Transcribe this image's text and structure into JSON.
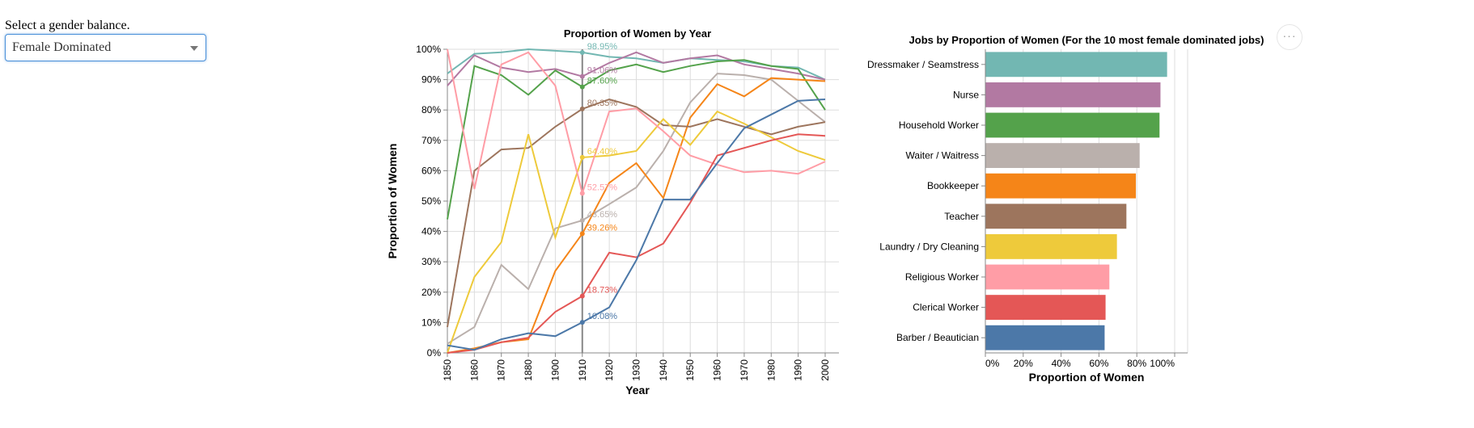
{
  "control": {
    "label": "Select a gender balance.",
    "selected": "Female Dominated"
  },
  "actions_menu": {
    "glyph": "···"
  },
  "chart_data": [
    {
      "type": "line",
      "title": "Proportion of Women by Year",
      "xlabel": "Year",
      "ylabel": "Proportion of Women",
      "x": [
        1850,
        1860,
        1870,
        1880,
        1900,
        1910,
        1920,
        1930,
        1940,
        1950,
        1960,
        1970,
        1980,
        1990,
        2000
      ],
      "x_tick_labels": [
        "1850",
        "1860",
        "1870",
        "1880",
        "1900",
        "1910",
        "1920",
        "1930",
        "1940",
        "1950",
        "1960",
        "1970",
        "1980",
        "1990",
        "2000"
      ],
      "y_tick_labels": [
        "0%",
        "10%",
        "20%",
        "30%",
        "40%",
        "50%",
        "60%",
        "70%",
        "80%",
        "90%",
        "100%"
      ],
      "ylim": [
        0,
        1
      ],
      "grid": true,
      "hover_year": 1910,
      "hover_labels": [
        {
          "series": "Dressmaker / Seamstress",
          "text": "98.95%"
        },
        {
          "series": "Nurse",
          "text": "91.06%"
        },
        {
          "series": "Household Worker",
          "text": "87.60%"
        },
        {
          "series": "Teacher",
          "text": "80.35%"
        },
        {
          "series": "Laundry / Dry Cleaning",
          "text": "64.40%"
        },
        {
          "series": "Religious Worker",
          "text": "52.57%"
        },
        {
          "series": "Waiter / Waitress",
          "text": "43.65%"
        },
        {
          "series": "Bookkeeper",
          "text": "39.26%"
        },
        {
          "series": "Clerical Worker",
          "text": "18.73%"
        },
        {
          "series": "Barber / Beautician",
          "text": "10.08%"
        }
      ],
      "series": [
        {
          "name": "Dressmaker / Seamstress",
          "color": "#72b7b2",
          "values": [
            0.92,
            0.985,
            0.99,
            1.0,
            0.995,
            0.9895,
            0.975,
            0.97,
            0.955,
            0.97,
            0.965,
            0.96,
            0.945,
            0.94,
            0.9
          ]
        },
        {
          "name": "Nurse",
          "color": "#b279a2",
          "values": [
            0.88,
            0.98,
            0.94,
            0.925,
            0.935,
            0.9106,
            0.955,
            0.99,
            0.955,
            0.97,
            0.98,
            0.95,
            0.935,
            0.92,
            0.9
          ]
        },
        {
          "name": "Household Worker",
          "color": "#54a24b",
          "values": [
            0.44,
            0.945,
            0.915,
            0.85,
            0.93,
            0.876,
            0.93,
            0.95,
            0.925,
            0.945,
            0.96,
            0.965,
            0.945,
            0.935,
            0.8
          ]
        },
        {
          "name": "Waiter / Waitress",
          "color": "#bab0ac",
          "values": [
            0.03,
            0.085,
            0.29,
            0.21,
            0.41,
            0.4365,
            0.49,
            0.545,
            0.665,
            0.825,
            0.92,
            0.915,
            0.9,
            0.83,
            0.76
          ]
        },
        {
          "name": "Bookkeeper",
          "color": "#f58518",
          "values": [
            0.0,
            0.015,
            0.035,
            0.045,
            0.27,
            0.3926,
            0.56,
            0.625,
            0.51,
            0.775,
            0.885,
            0.845,
            0.905,
            0.9,
            0.895
          ]
        },
        {
          "name": "Teacher",
          "color": "#9d755d",
          "values": [
            0.085,
            0.6,
            0.67,
            0.675,
            0.745,
            0.8035,
            0.835,
            0.81,
            0.75,
            0.745,
            0.77,
            0.745,
            0.72,
            0.745,
            0.76
          ]
        },
        {
          "name": "Laundry / Dry Cleaning",
          "color": "#eeca3b",
          "values": [
            0.0,
            0.25,
            0.365,
            0.72,
            0.38,
            0.644,
            0.65,
            0.665,
            0.77,
            0.685,
            0.795,
            0.755,
            0.71,
            0.665,
            0.635
          ]
        },
        {
          "name": "Religious Worker",
          "color": "#ff9da6",
          "values": [
            1.0,
            0.54,
            0.95,
            0.99,
            0.88,
            0.5257,
            0.795,
            0.805,
            0.73,
            0.65,
            0.62,
            0.595,
            0.6,
            0.59,
            0.63
          ]
        },
        {
          "name": "Clerical Worker",
          "color": "#e45756",
          "values": [
            0.0,
            0.01,
            0.035,
            0.05,
            0.135,
            0.1873,
            0.33,
            0.315,
            0.36,
            0.495,
            0.65,
            0.675,
            0.7,
            0.72,
            0.715
          ]
        },
        {
          "name": "Barber / Beautician",
          "color": "#4c78a8",
          "values": [
            0.025,
            0.01,
            0.045,
            0.065,
            0.055,
            0.1008,
            0.15,
            0.305,
            0.505,
            0.505,
            0.625,
            0.74,
            0.785,
            0.83,
            0.835
          ]
        }
      ]
    },
    {
      "type": "bar",
      "orientation": "horizontal",
      "title": "Jobs by Proportion of Women (For the 10 most female dominated jobs)",
      "xlabel": "Proportion of Women",
      "ylabel": "",
      "x_tick_labels": [
        "0%",
        "20%",
        "40%",
        "60%",
        "80%",
        "100%"
      ],
      "xlim": [
        0,
        1
      ],
      "categories": [
        "Dressmaker / Seamstress",
        "Nurse",
        "Household Worker",
        "Waiter / Waitress",
        "Bookkeeper",
        "Teacher",
        "Laundry / Dry Cleaning",
        "Religious Worker",
        "Clerical Worker",
        "Barber / Beautician"
      ],
      "values": [
        0.96,
        0.925,
        0.92,
        0.815,
        0.795,
        0.745,
        0.695,
        0.655,
        0.635,
        0.63
      ],
      "colors": [
        "#72b7b2",
        "#b279a2",
        "#54a24b",
        "#bab0ac",
        "#f58518",
        "#9d755d",
        "#eeca3b",
        "#ff9da6",
        "#e45756",
        "#4c78a8"
      ]
    }
  ]
}
